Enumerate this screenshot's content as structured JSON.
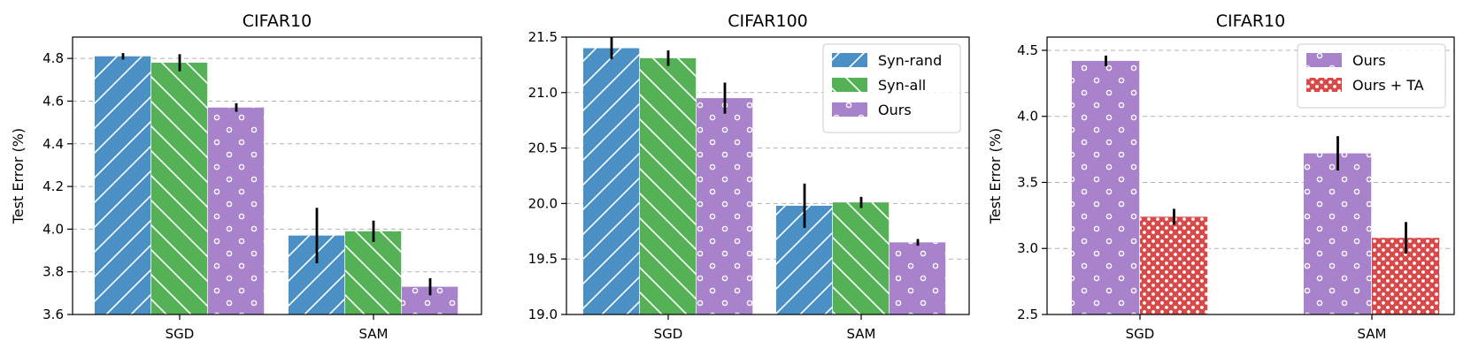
{
  "chart_data": [
    {
      "type": "bar",
      "title": "CIFAR10",
      "xlabel": "",
      "ylabel": "Test Error (%)",
      "ylim": [
        3.6,
        4.9
      ],
      "yticks": [
        "3.6",
        "3.8",
        "4.0",
        "4.2",
        "4.4",
        "4.6",
        "4.8"
      ],
      "grid": true,
      "categories": [
        "SGD",
        "SAM"
      ],
      "series": [
        {
          "name": "Syn-rand",
          "pattern": "hatch-slash",
          "color": "#4a90c4",
          "values": [
            4.81,
            3.97
          ],
          "errors": [
            0.015,
            0.13
          ]
        },
        {
          "name": "Syn-all",
          "pattern": "hatch-backslash",
          "color": "#55b155",
          "values": [
            4.78,
            3.99
          ],
          "errors": [
            0.04,
            0.05
          ]
        },
        {
          "name": "Ours",
          "pattern": "circles",
          "color": "#a882cb",
          "values": [
            4.57,
            3.73
          ],
          "errors": [
            0.02,
            0.04
          ]
        }
      ],
      "legend": null
    },
    {
      "type": "bar",
      "title": "CIFAR100",
      "xlabel": "",
      "ylabel": "",
      "ylim": [
        19.0,
        21.5
      ],
      "yticks": [
        "19.0",
        "19.5",
        "20.0",
        "20.5",
        "21.0",
        "21.5"
      ],
      "grid": true,
      "categories": [
        "SGD",
        "SAM"
      ],
      "series": [
        {
          "name": "Syn-rand",
          "pattern": "hatch-slash",
          "color": "#4a90c4",
          "values": [
            21.4,
            19.98
          ],
          "errors": [
            0.1,
            0.2
          ]
        },
        {
          "name": "Syn-all",
          "pattern": "hatch-backslash",
          "color": "#55b155",
          "values": [
            21.31,
            20.01
          ],
          "errors": [
            0.07,
            0.05
          ]
        },
        {
          "name": "Ours",
          "pattern": "circles",
          "color": "#a882cb",
          "values": [
            20.95,
            19.65
          ],
          "errors": [
            0.14,
            0.03
          ]
        }
      ],
      "legend": {
        "position": "top-right",
        "entries": [
          "Syn-rand",
          "Syn-all",
          "Ours"
        ]
      }
    },
    {
      "type": "bar",
      "title": "CIFAR10",
      "xlabel": "",
      "ylabel": "Test Error (%)",
      "ylim": [
        2.5,
        4.6
      ],
      "yticks": [
        "2.5",
        "3.0",
        "3.5",
        "4.0",
        "4.5"
      ],
      "grid": true,
      "categories": [
        "SGD",
        "SAM"
      ],
      "series": [
        {
          "name": "Ours",
          "pattern": "circles",
          "color": "#a882cb",
          "values": [
            4.42,
            3.72
          ],
          "errors": [
            0.04,
            0.13
          ]
        },
        {
          "name": "Ours + TA",
          "pattern": "dots",
          "color": "#d84a4a",
          "values": [
            3.24,
            3.08
          ],
          "errors": [
            0.06,
            0.12
          ]
        }
      ],
      "legend": {
        "position": "top-right",
        "entries": [
          "Ours",
          "Ours + TA"
        ]
      }
    }
  ]
}
